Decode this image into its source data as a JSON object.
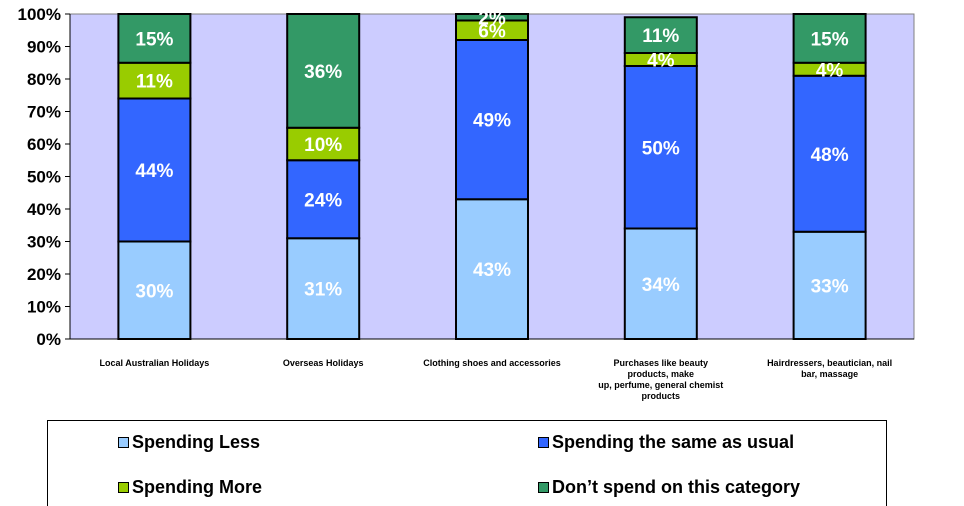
{
  "chart_data": {
    "type": "bar",
    "stacked": true,
    "categories": [
      "Local Australian Holidays",
      "Overseas Holidays",
      "Clothing shoes and accessories",
      "Purchases like beauty products, make up, perfume, general chemist products",
      "Hairdressers, beautician, nail bar, massage"
    ],
    "category_lines": [
      [
        "Local Australian Holidays"
      ],
      [
        "Overseas Holidays"
      ],
      [
        "Clothing shoes and accessories"
      ],
      [
        "Purchases like beauty",
        "products, make",
        "up, perfume, general chemist",
        "products"
      ],
      [
        "Hairdressers, beautician, nail",
        "bar, massage"
      ]
    ],
    "series": [
      {
        "name": "Spending Less",
        "color": "#99ccff",
        "values": [
          30,
          31,
          43,
          34,
          33
        ],
        "labels": [
          "30%",
          "31%",
          "43%",
          "34%",
          "33%"
        ]
      },
      {
        "name": "Spending the same as usual",
        "color": "#3366ff",
        "values": [
          44,
          24,
          49,
          50,
          48
        ],
        "labels": [
          "44%",
          "24%",
          "49%",
          "50%",
          "48%"
        ]
      },
      {
        "name": "Spending More",
        "color": "#99cc00",
        "values": [
          11,
          10,
          6,
          4,
          4
        ],
        "labels": [
          "11%",
          "10%",
          "6%",
          "4%",
          "4%"
        ]
      },
      {
        "name": "Don’t spend on this category",
        "color": "#339966",
        "values": [
          15,
          36,
          2,
          11,
          15
        ],
        "labels": [
          "15%",
          "36%",
          "2%",
          "11%",
          "15%"
        ]
      }
    ],
    "ylim": [
      0,
      100
    ],
    "yticks": [
      "0%",
      "10%",
      "20%",
      "30%",
      "40%",
      "50%",
      "60%",
      "70%",
      "80%",
      "90%",
      "100%"
    ],
    "plot_background": "#ccccff",
    "grid": false,
    "legend_position": "bottom"
  }
}
